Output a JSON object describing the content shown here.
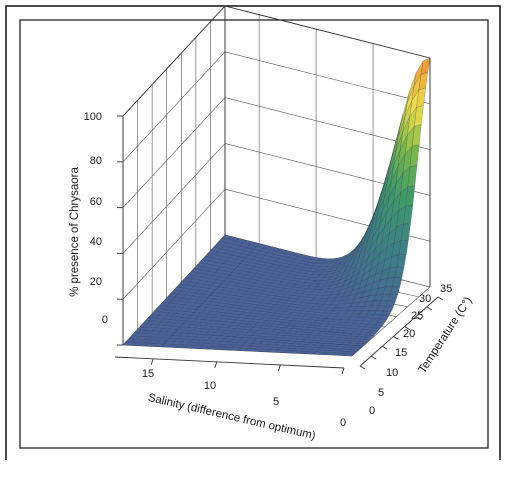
{
  "chart_data": {
    "type": "surface3d",
    "title": "",
    "zlabel": "% presence of Chrysaora",
    "xlabel": "Salinity (difference from optimum)",
    "ylabel": "Temperature (C°)",
    "x_ticks": [
      "15",
      "10",
      "5",
      "0"
    ],
    "y_ticks": [
      "0",
      "5",
      "10",
      "15",
      "20",
      "25",
      "30",
      "35"
    ],
    "z_ticks": [
      "0",
      "20",
      "40",
      "60",
      "80",
      "100"
    ],
    "xlim": [
      18,
      0
    ],
    "ylim": [
      0,
      35
    ],
    "zlim": [
      0,
      100
    ],
    "grid": true,
    "surface_samples": {
      "salinity": [
        0,
        5,
        10,
        15,
        18
      ],
      "temperature": [
        0,
        10,
        20,
        25,
        30,
        35
      ],
      "presence": [
        [
          0,
          1,
          8,
          30,
          70,
          100
        ],
        [
          0,
          0,
          2,
          8,
          20,
          35
        ],
        [
          0,
          0,
          0,
          1,
          3,
          6
        ],
        [
          0,
          0,
          0,
          0,
          0,
          1
        ],
        [
          0,
          0,
          0,
          0,
          0,
          0
        ]
      ]
    },
    "colors": {
      "low": "#4a6298",
      "mid": "#3f9a6a",
      "high_yellow": "#f2e04a",
      "peak_orange": "#ee9430"
    }
  }
}
